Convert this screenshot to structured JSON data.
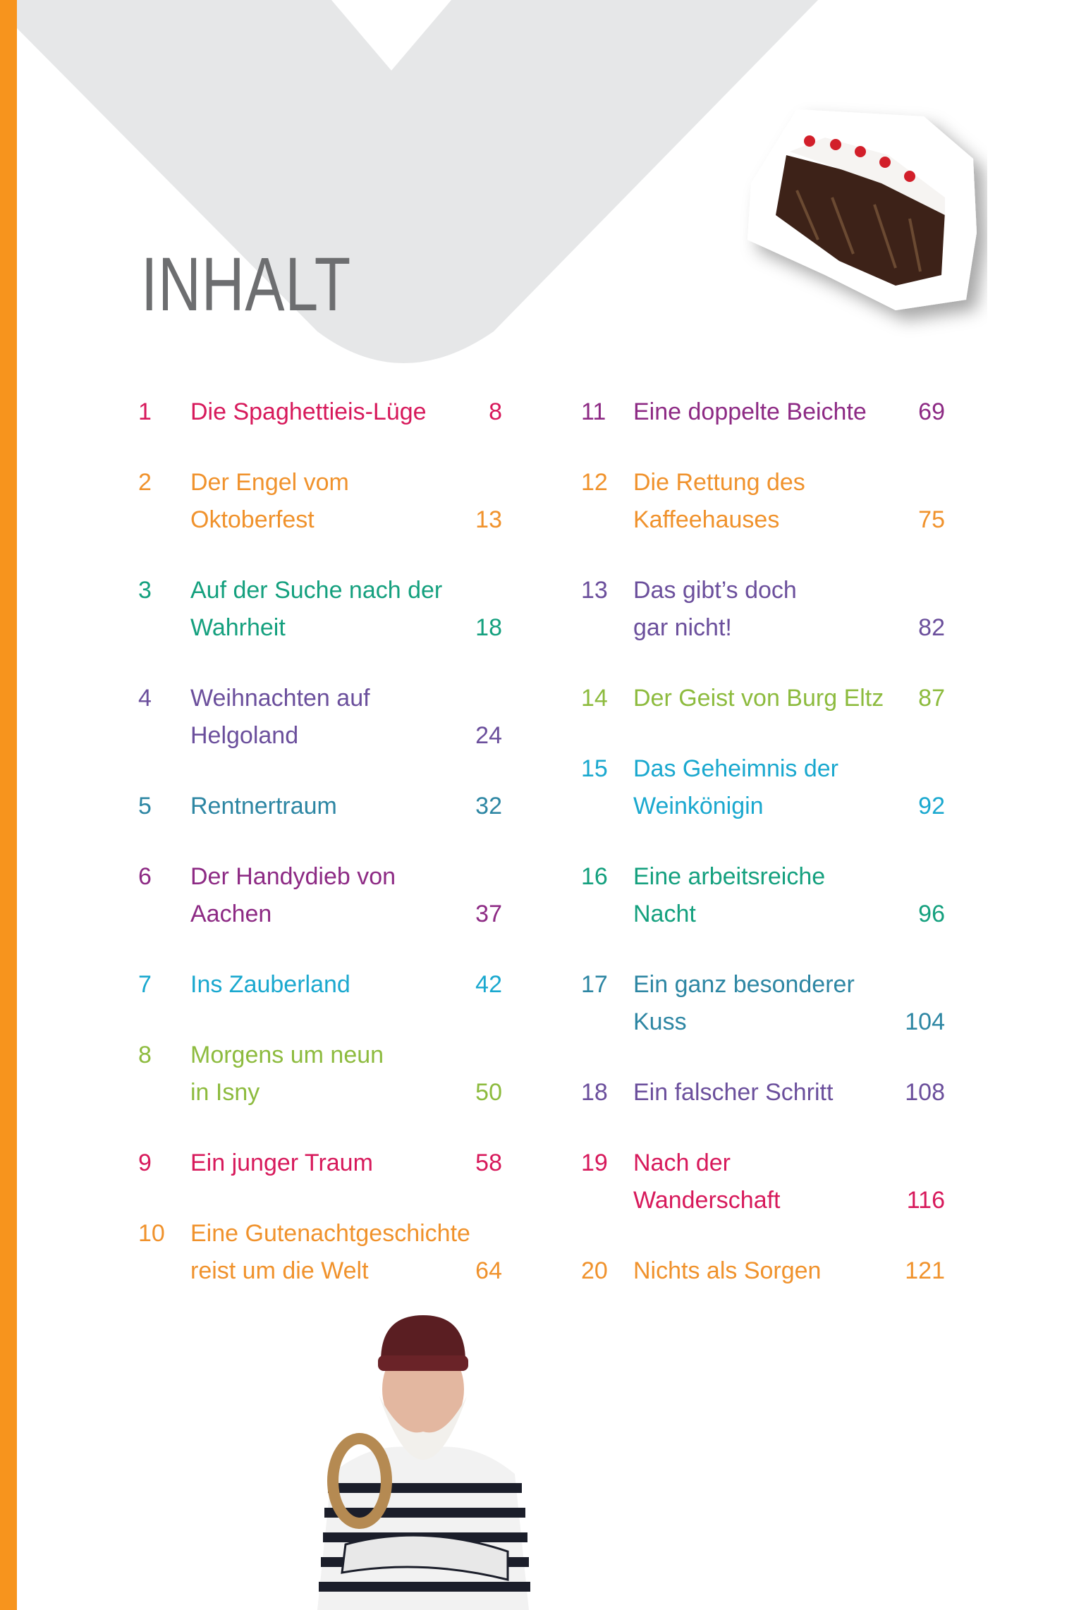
{
  "heading": "INHALT",
  "colors": {
    "sidebar": "#f7941d",
    "chevron": "#e6e7e8",
    "heading": "#6d6e70"
  },
  "images": {
    "top_right": "black-forest-cake-photo",
    "bottom": "bearded-sailor-photo"
  },
  "toc": {
    "left": [
      {
        "num": "1",
        "lines": [
          "Die Spaghettieis-Lüge"
        ],
        "page": "8",
        "color": "#d7195b"
      },
      {
        "num": "2",
        "lines": [
          "Der Engel vom",
          "Oktoberfest"
        ],
        "page": "13",
        "color": "#f0922c"
      },
      {
        "num": "3",
        "lines": [
          "Auf der Suche nach der",
          "Wahrheit"
        ],
        "page": "18",
        "color": "#14a07e"
      },
      {
        "num": "4",
        "lines": [
          "Weihnachten auf",
          "Helgoland"
        ],
        "page": "24",
        "color": "#6b4f9c"
      },
      {
        "num": "5",
        "lines": [
          "Rentnertraum"
        ],
        "page": "32",
        "color": "#2d86a3"
      },
      {
        "num": "6",
        "lines": [
          "Der Handydieb von",
          "Aachen"
        ],
        "page": "37",
        "color": "#8d2a84"
      },
      {
        "num": "7",
        "lines": [
          "Ins Zauberland"
        ],
        "page": "42",
        "color": "#1aa8cf"
      },
      {
        "num": "8",
        "lines": [
          "Morgens um neun",
          "in Isny"
        ],
        "page": "50",
        "color": "#8dbb3e"
      },
      {
        "num": "9",
        "lines": [
          "Ein junger Traum"
        ],
        "page": "58",
        "color": "#d7195b"
      },
      {
        "num": "10",
        "lines": [
          "Eine Gutenachtgeschichte",
          "reist um die Welt"
        ],
        "page": "64",
        "color": "#f0922c"
      }
    ],
    "right": [
      {
        "num": "11",
        "lines": [
          "Eine doppelte Beichte"
        ],
        "page": "69",
        "color": "#8d2a84"
      },
      {
        "num": "12",
        "lines": [
          "Die Rettung des",
          "Kaffeehauses"
        ],
        "page": "75",
        "color": "#f0922c"
      },
      {
        "num": "13",
        "lines": [
          "Das gibt’s doch",
          "gar nicht!"
        ],
        "page": "82",
        "color": "#6b4f9c"
      },
      {
        "num": "14",
        "lines": [
          "Der Geist von Burg Eltz"
        ],
        "page": "87",
        "color": "#8dbb3e"
      },
      {
        "num": "15",
        "lines": [
          "Das Geheimnis der",
          "Weinkönigin"
        ],
        "page": "92",
        "color": "#1aa8cf"
      },
      {
        "num": "16",
        "lines": [
          "Eine arbeitsreiche",
          "Nacht"
        ],
        "page": "96",
        "color": "#14a07e"
      },
      {
        "num": "17",
        "lines": [
          "Ein ganz besonderer",
          "Kuss"
        ],
        "page": "104",
        "color": "#2d86a3"
      },
      {
        "num": "18",
        "lines": [
          "Ein falscher Schritt"
        ],
        "page": "108",
        "color": "#6b4f9c"
      },
      {
        "num": "19",
        "lines": [
          "Nach der",
          "Wanderschaft"
        ],
        "page": "116",
        "color": "#d7195b"
      },
      {
        "num": "20",
        "lines": [
          "Nichts als Sorgen"
        ],
        "page": "121",
        "color": "#f0922c"
      }
    ]
  }
}
